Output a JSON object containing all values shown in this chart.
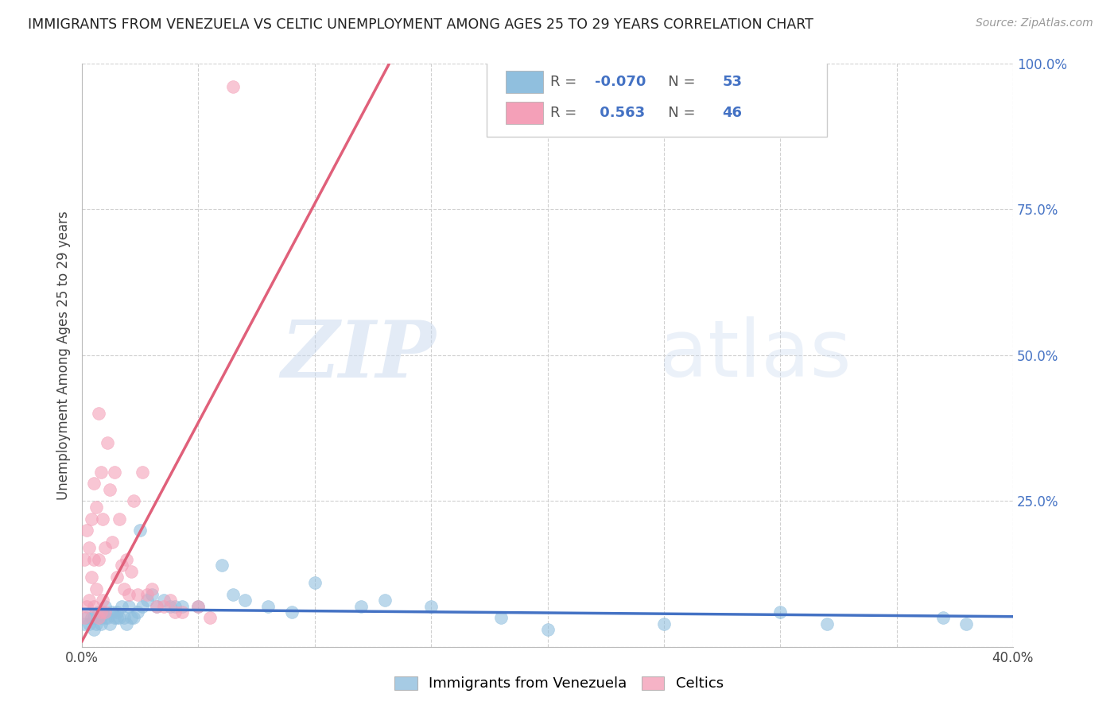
{
  "title": "IMMIGRANTS FROM VENEZUELA VS CELTIC UNEMPLOYMENT AMONG AGES 25 TO 29 YEARS CORRELATION CHART",
  "source": "Source: ZipAtlas.com",
  "ylabel": "Unemployment Among Ages 25 to 29 years",
  "xlim": [
    0.0,
    0.4
  ],
  "ylim": [
    0.0,
    1.0
  ],
  "xticks": [
    0.0,
    0.05,
    0.1,
    0.15,
    0.2,
    0.25,
    0.3,
    0.35,
    0.4
  ],
  "yticks_right": [
    0.0,
    0.25,
    0.5,
    0.75,
    1.0
  ],
  "yticklabels_right": [
    "",
    "25.0%",
    "50.0%",
    "75.0%",
    "100.0%"
  ],
  "grid_color": "#d0d0d0",
  "background_color": "#ffffff",
  "watermark_zip": "ZIP",
  "watermark_atlas": "atlas",
  "watermark_color_zip": "#c8d8ee",
  "watermark_color_atlas": "#c8d8ee",
  "blue_color": "#90bfde",
  "pink_color": "#f4a0b8",
  "blue_line_color": "#4472c4",
  "pink_line_color": "#e0607a",
  "blue_R": -0.07,
  "blue_N": 53,
  "pink_R": 0.563,
  "pink_N": 46,
  "legend_label_blue": "Immigrants from Venezuela",
  "legend_label_pink": "Celtics",
  "pink_line_x0": 0.0,
  "pink_line_y0": 0.01,
  "pink_line_x1": 0.132,
  "pink_line_y1": 1.0,
  "blue_x": [
    0.001,
    0.002,
    0.003,
    0.004,
    0.005,
    0.005,
    0.006,
    0.007,
    0.008,
    0.008,
    0.009,
    0.01,
    0.01,
    0.011,
    0.012,
    0.013,
    0.014,
    0.015,
    0.015,
    0.016,
    0.017,
    0.018,
    0.019,
    0.02,
    0.021,
    0.022,
    0.024,
    0.025,
    0.026,
    0.028,
    0.03,
    0.032,
    0.035,
    0.038,
    0.04,
    0.043,
    0.05,
    0.06,
    0.065,
    0.07,
    0.08,
    0.09,
    0.1,
    0.12,
    0.13,
    0.15,
    0.18,
    0.2,
    0.25,
    0.3,
    0.32,
    0.37,
    0.38
  ],
  "blue_y": [
    0.04,
    0.05,
    0.04,
    0.05,
    0.05,
    0.03,
    0.04,
    0.06,
    0.04,
    0.05,
    0.06,
    0.05,
    0.07,
    0.05,
    0.04,
    0.06,
    0.05,
    0.05,
    0.06,
    0.05,
    0.07,
    0.05,
    0.04,
    0.07,
    0.05,
    0.05,
    0.06,
    0.2,
    0.07,
    0.08,
    0.09,
    0.07,
    0.08,
    0.07,
    0.07,
    0.07,
    0.07,
    0.14,
    0.09,
    0.08,
    0.07,
    0.06,
    0.11,
    0.07,
    0.08,
    0.07,
    0.05,
    0.03,
    0.04,
    0.06,
    0.04,
    0.05,
    0.04
  ],
  "pink_x": [
    0.001,
    0.001,
    0.002,
    0.002,
    0.003,
    0.003,
    0.004,
    0.004,
    0.005,
    0.005,
    0.005,
    0.006,
    0.006,
    0.007,
    0.007,
    0.007,
    0.008,
    0.008,
    0.009,
    0.009,
    0.01,
    0.01,
    0.011,
    0.012,
    0.013,
    0.014,
    0.015,
    0.016,
    0.017,
    0.018,
    0.019,
    0.02,
    0.021,
    0.022,
    0.024,
    0.026,
    0.028,
    0.03,
    0.032,
    0.035,
    0.038,
    0.04,
    0.043,
    0.05,
    0.055,
    0.065
  ],
  "pink_y": [
    0.05,
    0.15,
    0.07,
    0.2,
    0.08,
    0.17,
    0.12,
    0.22,
    0.07,
    0.15,
    0.28,
    0.1,
    0.24,
    0.05,
    0.15,
    0.4,
    0.06,
    0.3,
    0.08,
    0.22,
    0.06,
    0.17,
    0.35,
    0.27,
    0.18,
    0.3,
    0.12,
    0.22,
    0.14,
    0.1,
    0.15,
    0.09,
    0.13,
    0.25,
    0.09,
    0.3,
    0.09,
    0.1,
    0.07,
    0.07,
    0.08,
    0.06,
    0.06,
    0.07,
    0.05,
    0.96
  ]
}
